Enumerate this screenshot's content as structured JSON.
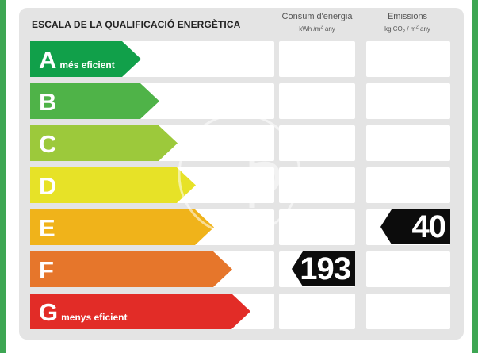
{
  "title": "ESCALA DE LA QUALIFICACIÓ ENERGÈTICA",
  "consumption_header": {
    "label": "Consum d'energia",
    "unit_prefix": "kWh /m",
    "unit_sup": "2",
    "unit_suffix": " any"
  },
  "emissions_header": {
    "label": "Emissions",
    "unit_a": "kg CO",
    "unit_sub": "2",
    "unit_b": " / m",
    "unit_sup": "2",
    "unit_suffix": " any"
  },
  "ratings": [
    {
      "letter": "A",
      "sub": "més eficient",
      "color": "#11a04a"
    },
    {
      "letter": "B",
      "sub": "",
      "color": "#4fb348"
    },
    {
      "letter": "C",
      "sub": "",
      "color": "#9cc93b"
    },
    {
      "letter": "D",
      "sub": "",
      "color": "#e7e227"
    },
    {
      "letter": "E",
      "sub": "",
      "color": "#f0b31a"
    },
    {
      "letter": "F",
      "sub": "",
      "color": "#e6762b"
    },
    {
      "letter": "G",
      "sub": "menys eficient",
      "color": "#e22c27"
    }
  ],
  "consumption": {
    "rating": "F",
    "value": "193"
  },
  "emissions": {
    "rating": "E",
    "value": "40"
  },
  "watermark_icon": "ap-logo-watermark"
}
